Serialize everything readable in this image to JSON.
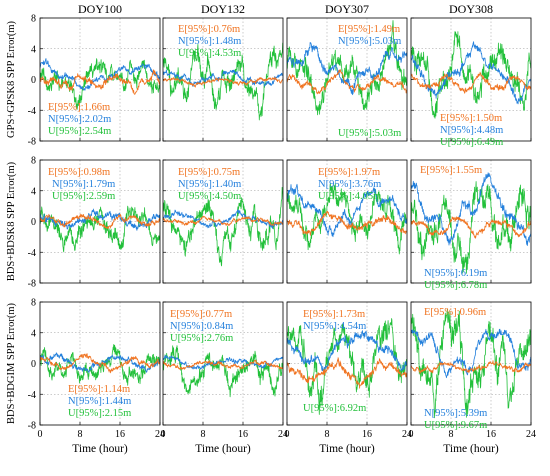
{
  "chart_data": {
    "type": "line",
    "layout": "3x4 grid",
    "colors": {
      "E": "#f07320",
      "N": "#2480dc",
      "U": "#22c03a"
    },
    "columns": [
      "DOY100",
      "DOY132",
      "DOY307",
      "DOY308"
    ],
    "row_labels": [
      "GPS+GPSK8 SPP Error(m)",
      "BDS+BDSK8 SPP Error(m)",
      "BDS+BDGIM SPP Error(m)"
    ],
    "xlabel": "Time (hour)",
    "xlim": [
      0,
      24
    ],
    "ylim": [
      -8,
      8
    ],
    "x_ticks": [
      "0",
      "8",
      "16",
      "24"
    ],
    "y_ticks": [
      "8",
      "4",
      "0",
      "-4",
      "-8"
    ],
    "grid": true,
    "series_names": [
      "E",
      "N",
      "U"
    ],
    "panels": [
      {
        "row": 0,
        "col": 0,
        "series": [
          {
            "name": "E",
            "label": "E[95%]:1.66m",
            "level": -0.3,
            "noise": 0.45,
            "waves": [
              [
                0.5,
                7,
                0.3
              ],
              [
                0.3,
                2.5,
                1.2
              ]
            ]
          },
          {
            "name": "N",
            "label": "N[95%]:2.02m",
            "level": 0.4,
            "noise": 0.4,
            "waves": [
              [
                1.2,
                20,
                1.7
              ],
              [
                0.4,
                5,
                0.4
              ]
            ]
          },
          {
            "name": "U",
            "label": "U[95%]:2.54m",
            "level": 0.0,
            "noise": 1.1,
            "waves": [
              [
                1.0,
                9,
                0.2
              ],
              [
                0.6,
                3,
                2.0
              ]
            ]
          }
        ]
      },
      {
        "row": 0,
        "col": 1,
        "series": [
          {
            "name": "E",
            "label": "E[95%]:0.76m",
            "level": -0.2,
            "noise": 0.25,
            "waves": [
              [
                0.3,
                10,
                0.6
              ]
            ]
          },
          {
            "name": "N",
            "label": "N[95%]:1.48m",
            "level": 0.2,
            "noise": 0.35,
            "waves": [
              [
                0.6,
                12,
                1.1
              ]
            ]
          },
          {
            "name": "U",
            "label": "U[95%]:4.53m",
            "level": 0.3,
            "noise": 1.3,
            "waves": [
              [
                2.0,
                8,
                2.3
              ],
              [
                1.0,
                3,
                0.9
              ]
            ]
          }
        ]
      },
      {
        "row": 0,
        "col": 2,
        "series": [
          {
            "name": "E",
            "label": "E[95%]:1.49m",
            "level": -0.6,
            "noise": 0.4,
            "waves": [
              [
                0.7,
                9,
                0.8
              ]
            ]
          },
          {
            "name": "N",
            "label": "N[95%]:5.03m",
            "level": 1.2,
            "noise": 0.6,
            "waves": [
              [
                2.2,
                18,
                0.2
              ],
              [
                0.8,
                5,
                1.5
              ]
            ]
          },
          {
            "name": "U",
            "label": "U[95%]:5.03m",
            "level": 0.0,
            "noise": 1.5,
            "waves": [
              [
                2.5,
                10,
                1.1
              ],
              [
                1.0,
                4,
                0.3
              ]
            ]
          }
        ]
      },
      {
        "row": 0,
        "col": 3,
        "series": [
          {
            "name": "E",
            "label": "E[95%]:1.50m",
            "level": -0.5,
            "noise": 0.4,
            "waves": [
              [
                0.8,
                7,
                1.4
              ]
            ]
          },
          {
            "name": "N",
            "label": "N[95%]:4.48m",
            "level": 1.0,
            "noise": 0.6,
            "waves": [
              [
                2.2,
                16,
                2.6
              ],
              [
                0.8,
                6,
                0.7
              ]
            ]
          },
          {
            "name": "U",
            "label": "U[95%]:6.49m",
            "level": 0.6,
            "noise": 1.7,
            "waves": [
              [
                2.8,
                8,
                0.5
              ],
              [
                1.2,
                3,
                1.7
              ]
            ]
          }
        ]
      },
      {
        "row": 1,
        "col": 0,
        "series": [
          {
            "name": "E",
            "label": "E[95%]:0.98m",
            "level": 0.0,
            "noise": 0.35,
            "waves": [
              [
                0.4,
                8,
                0.9
              ]
            ]
          },
          {
            "name": "N",
            "label": "N[95%]:1.79m",
            "level": 0.3,
            "noise": 0.45,
            "waves": [
              [
                0.8,
                14,
                2.1
              ]
            ]
          },
          {
            "name": "U",
            "label": "U[95%]:2.59m",
            "level": -0.6,
            "noise": 1.1,
            "waves": [
              [
                1.3,
                9,
                0.4
              ],
              [
                0.6,
                3,
                1.2
              ]
            ]
          }
        ]
      },
      {
        "row": 1,
        "col": 1,
        "series": [
          {
            "name": "E",
            "label": "E[95%]:0.75m",
            "level": 0.0,
            "noise": 0.25,
            "waves": [
              [
                0.3,
                9,
                1.8
              ]
            ]
          },
          {
            "name": "N",
            "label": "N[95%]:1.40m",
            "level": 0.3,
            "noise": 0.35,
            "waves": [
              [
                0.6,
                13,
                0.3
              ]
            ]
          },
          {
            "name": "U",
            "label": "U[95%]:4.50m",
            "level": -0.8,
            "noise": 1.3,
            "waves": [
              [
                2.0,
                8,
                1.6
              ],
              [
                1.0,
                3,
                0.4
              ]
            ]
          }
        ]
      },
      {
        "row": 1,
        "col": 2,
        "series": [
          {
            "name": "E",
            "label": "E[95%]:1.97m",
            "level": -0.2,
            "noise": 0.45,
            "waves": [
              [
                0.8,
                10,
                2.5
              ]
            ]
          },
          {
            "name": "N",
            "label": "N[95%]:3.76m",
            "level": 1.5,
            "noise": 0.6,
            "waves": [
              [
                1.8,
                16,
                0.9
              ],
              [
                0.6,
                5,
                0.2
              ]
            ]
          },
          {
            "name": "U",
            "label": "U[95%]:4.05m",
            "level": 0.4,
            "noise": 1.4,
            "waves": [
              [
                2.2,
                9,
                1.3
              ],
              [
                1.0,
                3,
                2.2
              ]
            ]
          }
        ]
      },
      {
        "row": 1,
        "col": 3,
        "series": [
          {
            "name": "E",
            "label": "E[95%]:1.55m",
            "level": -0.6,
            "noise": 0.4,
            "waves": [
              [
                0.8,
                8,
                0.6
              ]
            ]
          },
          {
            "name": "N",
            "label": "N[95%]:6.19m",
            "level": 1.5,
            "noise": 0.7,
            "waves": [
              [
                2.6,
                16,
                1.9
              ],
              [
                1.0,
                5,
                0.8
              ]
            ]
          },
          {
            "name": "U",
            "label": "U[95%]:6.78m",
            "level": -0.3,
            "noise": 1.8,
            "waves": [
              [
                3.0,
                8,
                2.7
              ],
              [
                1.2,
                3,
                0.1
              ]
            ]
          }
        ]
      },
      {
        "row": 2,
        "col": 0,
        "series": [
          {
            "name": "E",
            "label": "E[95%]:1.14m",
            "level": 0.0,
            "noise": 0.35,
            "waves": [
              [
                0.5,
                9,
                1.3
              ]
            ]
          },
          {
            "name": "N",
            "label": "N[95%]:1.44m",
            "level": 0.2,
            "noise": 0.4,
            "waves": [
              [
                0.6,
                13,
                0.5
              ]
            ]
          },
          {
            "name": "U",
            "label": "U[95%]:2.15m",
            "level": -0.3,
            "noise": 1.0,
            "waves": [
              [
                1.0,
                8,
                2.4
              ],
              [
                0.5,
                3,
                0.7
              ]
            ]
          }
        ]
      },
      {
        "row": 2,
        "col": 1,
        "series": [
          {
            "name": "E",
            "label": "E[95%]:0.77m",
            "level": -0.2,
            "noise": 0.25,
            "waves": [
              [
                0.3,
                10,
                2.0
              ]
            ]
          },
          {
            "name": "N",
            "label": "N[95%]:0.84m",
            "level": 0.2,
            "noise": 0.3,
            "waves": [
              [
                0.4,
                12,
                1.4
              ]
            ]
          },
          {
            "name": "U",
            "label": "U[95%]:2.76m",
            "level": -0.8,
            "noise": 1.1,
            "waves": [
              [
                1.6,
                8,
                0.1
              ],
              [
                0.8,
                3,
                1.9
              ]
            ]
          }
        ]
      },
      {
        "row": 2,
        "col": 2,
        "series": [
          {
            "name": "E",
            "label": "E[95%]:1.73m",
            "level": -1.2,
            "noise": 0.5,
            "waves": [
              [
                1.0,
                10,
                1.7
              ]
            ]
          },
          {
            "name": "N",
            "label": "N[95%]:4.54m",
            "level": 2.0,
            "noise": 0.6,
            "waves": [
              [
                1.8,
                18,
                2.8
              ],
              [
                0.6,
                5,
                1.0
              ]
            ]
          },
          {
            "name": "U",
            "label": "U[95%]:6.92m",
            "level": 0.5,
            "noise": 1.8,
            "waves": [
              [
                3.0,
                9,
                0.6
              ],
              [
                1.2,
                3,
                2.5
              ]
            ]
          }
        ]
      },
      {
        "row": 2,
        "col": 3,
        "series": [
          {
            "name": "E",
            "label": "E[95%]:0.96m",
            "level": -0.4,
            "noise": 0.3,
            "waves": [
              [
                0.5,
                9,
                2.9
              ]
            ]
          },
          {
            "name": "N",
            "label": "N[95%]:5.39m",
            "level": 1.5,
            "noise": 0.6,
            "waves": [
              [
                2.2,
                16,
                1.2
              ],
              [
                0.8,
                5,
                2.3
              ]
            ]
          },
          {
            "name": "U",
            "label": "U[95%]:9.67m",
            "level": 0.8,
            "noise": 2.0,
            "waves": [
              [
                3.5,
                8,
                1.5
              ],
              [
                1.5,
                3,
                0.2
              ]
            ]
          }
        ]
      }
    ]
  }
}
